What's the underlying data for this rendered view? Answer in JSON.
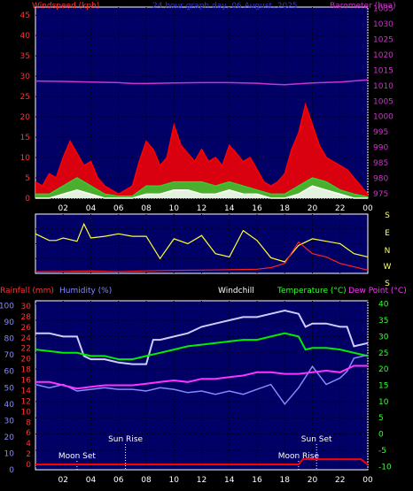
{
  "chart_data": [
    {
      "type": "line",
      "title": "24 hour graph day, 06 August, 2025",
      "y_left_label": "Windspeed (kph)",
      "y_right_label": "Barometer (hpa)",
      "y_left_ticks": [
        "0",
        "5",
        "10",
        "15",
        "20",
        "25",
        "30",
        "35",
        "40",
        "45"
      ],
      "y_left_range": [
        0,
        47
      ],
      "y_right_ticks": [
        "975",
        "980",
        "985",
        "990",
        "995",
        "1000",
        "1005",
        "1010",
        "1015",
        "1020",
        "1025",
        "1030",
        "1035"
      ],
      "y_right_range": [
        973.5,
        1035.5
      ],
      "x_ticks": [
        "02",
        "04",
        "06",
        "08",
        "10",
        "12",
        "14",
        "16",
        "18",
        "20",
        "22",
        "00"
      ],
      "x_range": [
        0,
        24
      ],
      "grid": true,
      "series": [
        {
          "name": "Barometer (hpa)",
          "color": "#cc33cc",
          "axis": "right",
          "x": [
            0,
            2,
            4,
            6,
            7,
            8,
            10,
            12,
            14,
            16,
            17,
            18,
            19,
            20,
            22,
            24
          ],
          "y": [
            1011.5,
            1011.4,
            1011.2,
            1011.0,
            1010.7,
            1010.7,
            1010.9,
            1011.0,
            1011.0,
            1010.8,
            1010.5,
            1010.3,
            1010.6,
            1010.9,
            1011.2,
            1011.9
          ]
        },
        {
          "name": "Wind gust",
          "color": "#ff0000",
          "axis": "left",
          "x": [
            0,
            0.5,
            1,
            1.5,
            2,
            2.5,
            3,
            3.5,
            4,
            4.5,
            5,
            5.5,
            6,
            6.5,
            7,
            7.5,
            8,
            8.5,
            9,
            9.5,
            10,
            10.5,
            11,
            11.5,
            12,
            12.5,
            13,
            13.5,
            14,
            14.5,
            15,
            15.5,
            16,
            16.5,
            17,
            17.5,
            18,
            18.5,
            19,
            19.5,
            20,
            20.5,
            21,
            21.5,
            22,
            22.5,
            23,
            23.5,
            24
          ],
          "y": [
            4,
            3,
            6,
            5,
            10,
            14,
            11,
            8,
            9,
            5,
            3,
            2,
            1,
            2,
            3,
            9,
            14,
            12,
            8,
            10,
            18,
            13,
            11,
            9,
            12,
            9,
            10,
            8,
            13,
            11,
            9,
            10,
            7,
            4,
            3,
            4,
            6,
            12,
            16,
            23,
            18,
            13,
            10,
            9,
            8,
            7,
            5,
            3,
            1
          ]
        },
        {
          "name": "Average wind",
          "color": "#33cc33",
          "axis": "left",
          "x": [
            0,
            1,
            2,
            3,
            4,
            5,
            6,
            7,
            8,
            9,
            10,
            11,
            12,
            13,
            14,
            15,
            16,
            17,
            18,
            19,
            20,
            21,
            22,
            23,
            24
          ],
          "y": [
            1,
            1,
            3,
            5,
            3,
            1,
            0.5,
            0.5,
            3,
            3,
            4,
            4,
            4,
            3,
            4,
            3,
            2,
            1,
            1,
            3,
            5,
            4,
            2,
            1,
            0.3
          ]
        },
        {
          "name": "Wind lull",
          "color": "#ffffff",
          "axis": "left",
          "x": [
            0,
            1,
            2,
            3,
            4,
            5,
            6,
            7,
            8,
            9,
            10,
            11,
            12,
            13,
            14,
            15,
            16,
            17,
            18,
            19,
            20,
            21,
            22,
            23,
            24
          ],
          "y": [
            0,
            0,
            1,
            2,
            1,
            0,
            0,
            0,
            1,
            1,
            2,
            2,
            1,
            1,
            2,
            1,
            1,
            0,
            0,
            1,
            3,
            2,
            1,
            0,
            0
          ]
        }
      ]
    },
    {
      "type": "line",
      "title": "",
      "y_right_labels": [
        "S",
        "E",
        "N",
        "W",
        "S"
      ],
      "x_range": [
        0,
        24
      ],
      "y_range": [
        0,
        360
      ],
      "grid": true,
      "series": [
        {
          "name": "Wind direction",
          "color": "#ffff33",
          "x": [
            0,
            1,
            1.5,
            2,
            3,
            3.5,
            4,
            5,
            6,
            7,
            8,
            9,
            10,
            11,
            12,
            13,
            14,
            15,
            16,
            17,
            18,
            19,
            20,
            21,
            22,
            23,
            24
          ],
          "y": [
            240,
            200,
            200,
            215,
            195,
            300,
            215,
            225,
            240,
            225,
            225,
            90,
            210,
            180,
            230,
            120,
            100,
            260,
            200,
            95,
            70,
            170,
            210,
            195,
            180,
            120,
            100
          ]
        },
        {
          "name": "Wind speed",
          "color": "#ff2222",
          "x": [
            0,
            2,
            4,
            6,
            8,
            10,
            12,
            14,
            16,
            17,
            18,
            19,
            20,
            21,
            22,
            23,
            24
          ],
          "y": [
            10,
            12,
            14,
            10,
            15,
            18,
            20,
            22,
            25,
            35,
            60,
            190,
            120,
            100,
            60,
            40,
            20
          ]
        }
      ]
    },
    {
      "type": "line",
      "title": "",
      "labels": {
        "rainfall": "Rainfall (mm)",
        "humidity": "Humidity (%)",
        "windchill": "Windchill",
        "temperature": "Temperature (°C)",
        "dewpoint": "Dew Point (°C)"
      },
      "y_humidity_ticks": [
        "0",
        "10",
        "20",
        "30",
        "40",
        "50",
        "60",
        "70",
        "80",
        "90",
        "100"
      ],
      "y_humidity_range": [
        0,
        103
      ],
      "y_rain_ticks": [
        "0",
        "2",
        "4",
        "6",
        "8",
        "10",
        "12",
        "14",
        "16",
        "18",
        "20",
        "22",
        "24",
        "26",
        "28",
        "30"
      ],
      "y_rain_range": [
        -1,
        31
      ],
      "y_temp_ticks": [
        "-10",
        "-5",
        "0",
        "5",
        "10",
        "15",
        "20",
        "25",
        "30",
        "35",
        "40"
      ],
      "y_temp_range": [
        -11,
        41
      ],
      "x_ticks": [
        "02",
        "04",
        "06",
        "08",
        "10",
        "12",
        "14",
        "16",
        "18",
        "20",
        "22",
        "00"
      ],
      "x_range": [
        0,
        24
      ],
      "grid": true,
      "annotations": [
        {
          "text": "Moon Set",
          "x": 3,
          "color": "#ffffff"
        },
        {
          "text": "Sun Rise",
          "x": 6.5,
          "color": "#ffffff"
        },
        {
          "text": "Moon Rise",
          "x": 19,
          "color": "#ffffff"
        },
        {
          "text": "Sun Set",
          "x": 20.3,
          "color": "#ffffff"
        }
      ],
      "series": [
        {
          "name": "Windchill",
          "color": "#ccccff",
          "axis": "temp",
          "x": [
            0,
            1,
            2,
            3,
            3.5,
            4,
            5,
            6,
            7,
            8,
            8.5,
            9,
            10,
            11,
            12,
            13,
            14,
            15,
            16,
            17,
            18,
            19,
            19.5,
            20,
            21,
            22,
            22.5,
            23,
            24
          ],
          "y": [
            31,
            31,
            30,
            30,
            24,
            23,
            23,
            22,
            21.5,
            21.5,
            29,
            29,
            30,
            31,
            33,
            34,
            35,
            36,
            36,
            37,
            38,
            37,
            33,
            34,
            34,
            33,
            33,
            27,
            28
          ]
        },
        {
          "name": "Temperature (°C)",
          "color": "#00ee00",
          "axis": "temp",
          "x": [
            0,
            1,
            2,
            3,
            4,
            5,
            6,
            7,
            8,
            9,
            10,
            11,
            12,
            13,
            14,
            15,
            16,
            17,
            18,
            19,
            19.5,
            20,
            21,
            22,
            23,
            24
          ],
          "y": [
            26,
            25.5,
            25,
            25,
            24,
            24,
            23,
            23,
            24,
            25,
            26,
            27,
            27.5,
            28,
            28.5,
            29,
            29,
            30,
            31,
            30,
            26,
            26.5,
            26.5,
            26,
            25,
            24
          ]
        },
        {
          "name": "Humidity (%)",
          "color": "#8888ff",
          "axis": "humidity",
          "x": [
            0,
            1,
            2,
            3,
            4,
            5,
            6,
            7,
            8,
            9,
            10,
            11,
            12,
            13,
            14,
            15,
            16,
            17,
            18,
            19,
            20,
            21,
            22,
            22.5,
            23,
            24
          ],
          "y": [
            52,
            50,
            52,
            48,
            49,
            50,
            49,
            49,
            48,
            50,
            49,
            47,
            48,
            46,
            48,
            46,
            49,
            52,
            40,
            50,
            63,
            52,
            56,
            60,
            68,
            70
          ]
        },
        {
          "name": "Dew Point (°C)",
          "color": "#ff33ff",
          "axis": "temp",
          "x": [
            0,
            1,
            2,
            3,
            4,
            5,
            6,
            7,
            8,
            9,
            10,
            11,
            12,
            13,
            14,
            15,
            16,
            17,
            18,
            19,
            20,
            21,
            22,
            23,
            24
          ],
          "y": [
            16,
            16,
            15,
            14,
            14.5,
            15,
            15,
            15,
            15.5,
            16,
            16.5,
            16,
            17,
            17,
            17.5,
            18,
            19,
            19,
            18.5,
            18.5,
            19,
            19.5,
            19,
            21,
            21
          ]
        },
        {
          "name": "Rainfall (mm)",
          "color": "#ff0000",
          "axis": "rain",
          "x": [
            0,
            19,
            19.3,
            23.5,
            24
          ],
          "y": [
            0,
            0,
            1,
            1,
            0
          ]
        }
      ]
    }
  ]
}
